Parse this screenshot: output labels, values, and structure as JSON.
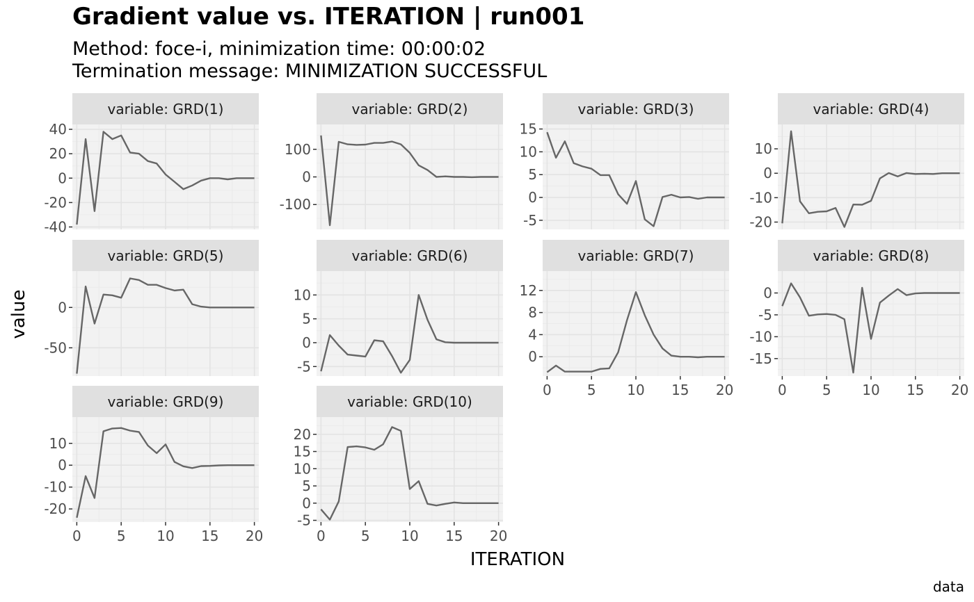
{
  "title": "Gradient value vs. ITERATION | run001",
  "subtitle_line1": "Method: foce-i, minimization time: 00:00:02",
  "subtitle_line2": "Termination message: MINIMIZATION SUCCESSFUL",
  "caption": "data",
  "colors": {
    "line": "#666666",
    "panel_bg": "#f2f2f2",
    "strip_bg": "#e0e0e0",
    "grid_major": "#e3e3e3",
    "grid_minor": "#ebebeb"
  },
  "chart_data": {
    "type": "line",
    "xlabel": "ITERATION",
    "ylabel": "value",
    "x": [
      0,
      1,
      2,
      3,
      4,
      5,
      6,
      7,
      8,
      9,
      10,
      11,
      12,
      13,
      14,
      15,
      16,
      17,
      18,
      19,
      20
    ],
    "xlim": [
      -0.5,
      20.5
    ],
    "xticks": [
      0,
      5,
      10,
      15,
      20
    ],
    "facet_prefix": "variable: ",
    "panels": [
      {
        "name": "GRD(1)",
        "ylim": [
          -42,
          44
        ],
        "yticks": [
          -40,
          -20,
          0,
          20,
          40
        ],
        "values": [
          -38,
          32,
          -27,
          38,
          32,
          35,
          21,
          20,
          14,
          12,
          3,
          -3,
          -9,
          -6,
          -2,
          0,
          0,
          -1,
          0,
          0,
          0
        ]
      },
      {
        "name": "GRD(2)",
        "ylim": [
          -190,
          190
        ],
        "yticks": [
          -100,
          0,
          100
        ],
        "values": [
          150,
          -175,
          127,
          118,
          116,
          117,
          123,
          123,
          128,
          118,
          87,
          42,
          25,
          0,
          2,
          0,
          0,
          -1,
          0,
          0,
          0
        ]
      },
      {
        "name": "GRD(3)",
        "ylim": [
          -7,
          16
        ],
        "yticks": [
          -5,
          0,
          5,
          10,
          15
        ],
        "values": [
          14.3,
          8.7,
          12.3,
          7.5,
          6.8,
          6.3,
          4.9,
          4.9,
          0.7,
          -1.4,
          3.6,
          -4.8,
          -6.3,
          0.1,
          0.6,
          0,
          0.1,
          -0.3,
          0,
          0,
          0
        ]
      },
      {
        "name": "GRD(4)",
        "ylim": [
          -23,
          20
        ],
        "yticks": [
          -20,
          -10,
          0,
          10
        ],
        "values": [
          -20.5,
          17.2,
          -11.5,
          -16.4,
          -15.8,
          -15.6,
          -14.2,
          -22,
          -12.8,
          -12.9,
          -11.3,
          -2.1,
          0.1,
          -1.3,
          0.1,
          -0.3,
          -0.2,
          -0.3,
          0,
          0,
          0
        ]
      },
      {
        "name": "GRD(5)",
        "ylim": [
          -85,
          45
        ],
        "yticks": [
          -50,
          0
        ],
        "values": [
          -82,
          26,
          -20,
          16,
          15,
          12,
          36,
          34,
          28,
          28,
          24,
          21,
          22,
          4,
          1,
          0,
          0,
          0,
          0,
          0,
          0
        ]
      },
      {
        "name": "GRD(6)",
        "ylim": [
          -7,
          15
        ],
        "yticks": [
          -5,
          0,
          5,
          10
        ],
        "values": [
          -6,
          1.6,
          -0.6,
          -2.5,
          -2.7,
          -2.9,
          0.5,
          0.3,
          -2.8,
          -6.3,
          -3.6,
          10,
          4.8,
          0.7,
          0.1,
          0,
          0,
          0,
          0,
          0,
          0
        ]
      },
      {
        "name": "GRD(7)",
        "ylim": [
          -3.5,
          15.5
        ],
        "yticks": [
          0,
          4,
          8,
          12
        ],
        "values": [
          -2.8,
          -1.6,
          -2.7,
          -2.7,
          -2.7,
          -2.7,
          -2.2,
          -2.1,
          0.8,
          6.6,
          11.7,
          7.5,
          4,
          1.5,
          0.2,
          0,
          0,
          -0.1,
          0,
          0,
          0
        ]
      },
      {
        "name": "GRD(8)",
        "ylim": [
          -19,
          5
        ],
        "yticks": [
          -15,
          -10,
          -5,
          0
        ],
        "values": [
          -3,
          2.2,
          -1,
          -5.2,
          -4.9,
          -4.8,
          -5,
          -6,
          -18.2,
          1.2,
          -10.5,
          -2.2,
          -0.6,
          0.9,
          -0.5,
          -0.1,
          0,
          0,
          0,
          0,
          0
        ]
      },
      {
        "name": "GRD(9)",
        "ylim": [
          -26,
          22
        ],
        "yticks": [
          -20,
          -10,
          0,
          10
        ],
        "values": [
          -24,
          -5,
          -15,
          15.5,
          16.8,
          17,
          15.8,
          15.2,
          9,
          5.5,
          9.5,
          1.5,
          -0.5,
          -1.3,
          -0.4,
          -0.3,
          -0.1,
          0,
          0,
          0,
          0
        ]
      },
      {
        "name": "GRD(10)",
        "ylim": [
          -5.5,
          25
        ],
        "yticks": [
          -5,
          0,
          5,
          10,
          15,
          20
        ],
        "values": [
          -1.8,
          -4.8,
          0.5,
          16.3,
          16.5,
          16.2,
          15.5,
          17.1,
          22.1,
          21,
          4.1,
          6.4,
          -0.2,
          -0.7,
          -0.2,
          0.2,
          0,
          0,
          0,
          0,
          0
        ]
      }
    ]
  }
}
